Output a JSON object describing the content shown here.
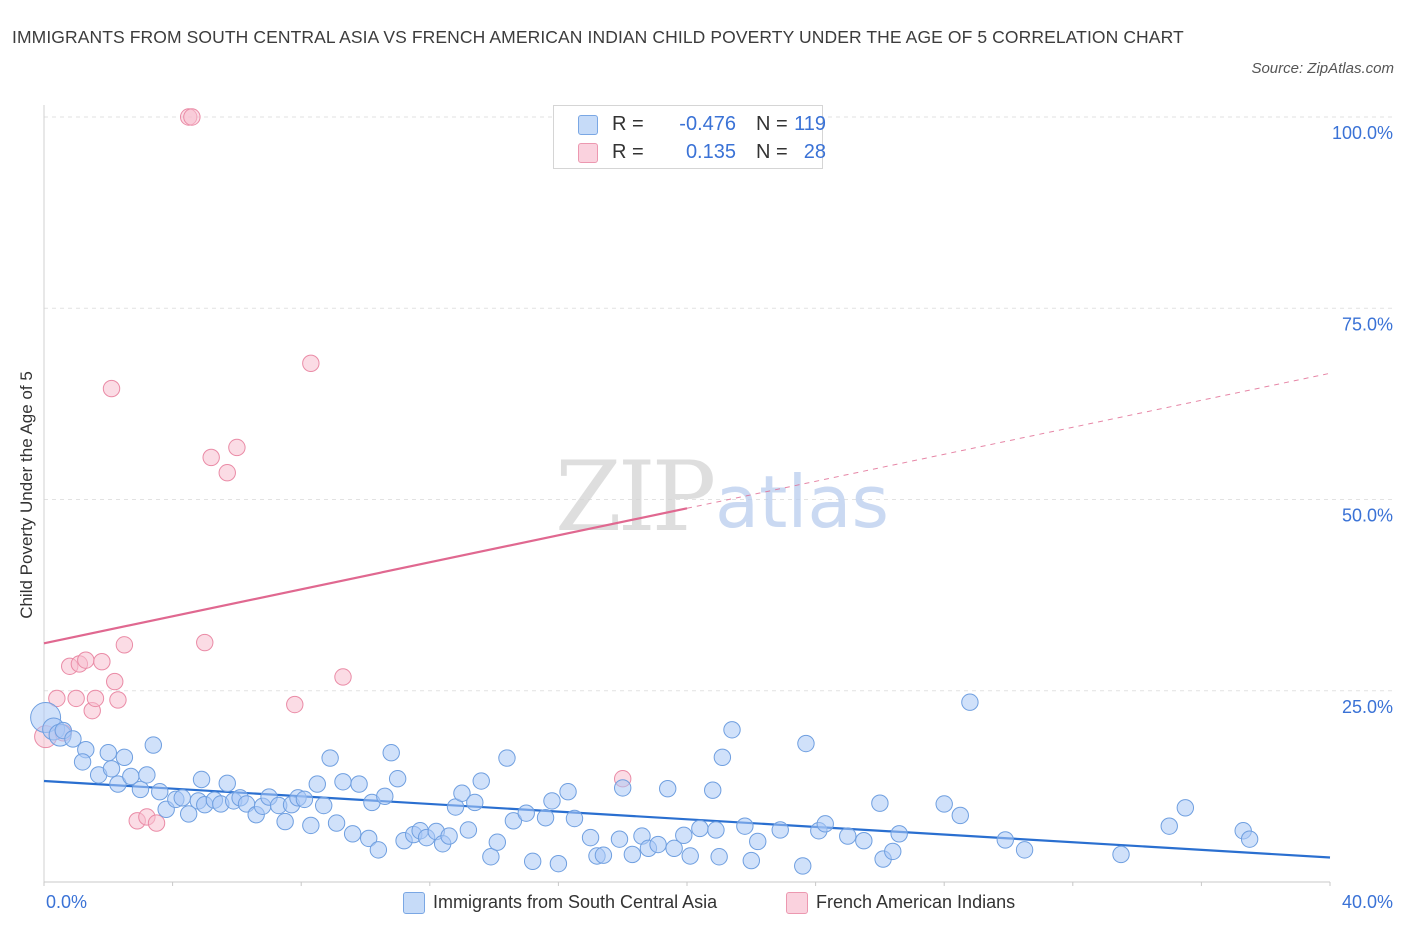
{
  "title": "IMMIGRANTS FROM SOUTH CENTRAL ASIA VS FRENCH AMERICAN INDIAN CHILD POVERTY UNDER THE AGE OF 5 CORRELATION CHART",
  "source": "Source: ZipAtlas.com",
  "watermark": {
    "zip": "ZIP",
    "atlas": "atlas"
  },
  "colors": {
    "blue_fill": "#a9c8f5",
    "blue_stroke": "#6f9fe0",
    "blue_line": "#2a6fd0",
    "pink_fill": "#f7c0d0",
    "pink_stroke": "#ea8ba6",
    "pink_line": "#e06890",
    "axis_text": "#3a72d6",
    "grid": "#e2e2e2"
  },
  "legend_top": {
    "rows": [
      {
        "r_label": "R =",
        "r_value": "-0.476",
        "n_label": "N =",
        "n_value": "119"
      },
      {
        "r_label": "R =",
        "r_value": "0.135",
        "n_label": "N =",
        "n_value": "28"
      }
    ]
  },
  "legend_bottom": [
    "Immigrants from South Central Asia",
    "French American Indians"
  ],
  "chart_data": {
    "type": "scatter",
    "title": "IMMIGRANTS FROM SOUTH CENTRAL ASIA VS FRENCH AMERICAN INDIAN CHILD POVERTY UNDER THE AGE OF 5 CORRELATION CHART",
    "xlabel": "",
    "ylabel": "Child Poverty Under the Age of 5",
    "xlim": [
      0,
      40
    ],
    "ylim": [
      0,
      100
    ],
    "x_tick_labels": [
      "0.0%",
      "40.0%"
    ],
    "y_ticks": [
      25,
      50,
      75,
      100
    ],
    "y_tick_labels": [
      "25.0%",
      "50.0%",
      "75.0%",
      "100.0%"
    ],
    "grid": "horizontal dashed",
    "legend_position": "top-center",
    "series": [
      {
        "name": "Immigrants from South Central Asia",
        "color": "#a9c8f5",
        "trend": {
          "x": [
            0,
            40
          ],
          "y": [
            13.2,
            3.2
          ],
          "dashed_after": null
        },
        "points": [
          [
            0.05,
            21.5,
            3
          ],
          [
            0.3,
            20.0,
            2
          ],
          [
            0.5,
            19.2,
            2
          ],
          [
            0.6,
            19.8,
            1
          ],
          [
            0.9,
            18.7,
            1
          ],
          [
            1.3,
            17.3,
            1
          ],
          [
            1.2,
            15.7,
            1
          ],
          [
            1.7,
            14.0,
            1
          ],
          [
            2.0,
            16.9,
            1
          ],
          [
            2.1,
            14.8,
            1
          ],
          [
            2.3,
            12.8,
            1
          ],
          [
            2.5,
            16.3,
            1
          ],
          [
            2.7,
            13.8,
            1
          ],
          [
            3.0,
            12.1,
            1
          ],
          [
            3.2,
            14.0,
            1
          ],
          [
            3.4,
            17.9,
            1
          ],
          [
            3.6,
            11.8,
            1
          ],
          [
            3.8,
            9.5,
            1
          ],
          [
            4.1,
            10.8,
            1
          ],
          [
            4.3,
            11.0,
            1
          ],
          [
            4.5,
            8.9,
            1
          ],
          [
            4.8,
            10.6,
            1
          ],
          [
            4.9,
            13.4,
            1
          ],
          [
            5.0,
            10.1,
            1
          ],
          [
            5.3,
            10.7,
            1
          ],
          [
            5.5,
            10.2,
            1
          ],
          [
            5.7,
            12.9,
            1
          ],
          [
            5.9,
            10.6,
            1
          ],
          [
            6.1,
            11.0,
            1
          ],
          [
            6.3,
            10.2,
            1
          ],
          [
            6.6,
            8.8,
            1
          ],
          [
            6.8,
            9.9,
            1
          ],
          [
            7.0,
            11.1,
            1
          ],
          [
            7.3,
            10.0,
            1
          ],
          [
            7.5,
            7.9,
            1
          ],
          [
            7.7,
            10.1,
            1
          ],
          [
            7.9,
            11.0,
            1
          ],
          [
            8.1,
            10.8,
            1
          ],
          [
            8.3,
            7.4,
            1
          ],
          [
            8.5,
            12.8,
            1
          ],
          [
            8.7,
            10.0,
            1
          ],
          [
            8.9,
            16.2,
            1
          ],
          [
            9.1,
            7.7,
            1
          ],
          [
            9.3,
            13.1,
            1
          ],
          [
            9.6,
            6.3,
            1
          ],
          [
            9.8,
            12.8,
            1
          ],
          [
            10.1,
            5.7,
            1
          ],
          [
            10.2,
            10.4,
            1
          ],
          [
            10.4,
            4.2,
            1
          ],
          [
            10.6,
            11.2,
            1
          ],
          [
            10.8,
            16.9,
            1
          ],
          [
            11.0,
            13.5,
            1
          ],
          [
            11.2,
            5.4,
            1
          ],
          [
            11.5,
            6.2,
            1
          ],
          [
            11.7,
            6.7,
            1
          ],
          [
            11.9,
            5.8,
            1
          ],
          [
            12.2,
            6.6,
            1
          ],
          [
            12.4,
            5.0,
            1
          ],
          [
            12.6,
            6.0,
            1
          ],
          [
            12.8,
            9.8,
            1
          ],
          [
            13.0,
            11.6,
            1
          ],
          [
            13.2,
            6.8,
            1
          ],
          [
            13.4,
            10.4,
            1
          ],
          [
            13.6,
            13.2,
            1
          ],
          [
            13.9,
            3.3,
            1
          ],
          [
            14.1,
            5.2,
            1
          ],
          [
            14.4,
            16.2,
            1
          ],
          [
            14.6,
            8.0,
            1
          ],
          [
            15.0,
            9.0,
            1
          ],
          [
            15.2,
            2.7,
            1
          ],
          [
            15.6,
            8.4,
            1
          ],
          [
            16.0,
            2.4,
            1
          ],
          [
            15.8,
            10.6,
            1
          ],
          [
            16.3,
            11.8,
            1
          ],
          [
            16.5,
            8.3,
            1
          ],
          [
            17.0,
            5.8,
            1
          ],
          [
            17.2,
            3.4,
            1
          ],
          [
            17.4,
            3.5,
            1
          ],
          [
            17.9,
            5.6,
            1
          ],
          [
            18.0,
            12.3,
            1
          ],
          [
            18.3,
            3.6,
            1
          ],
          [
            18.6,
            6.0,
            1
          ],
          [
            18.8,
            4.4,
            1
          ],
          [
            19.1,
            4.9,
            1
          ],
          [
            19.4,
            12.2,
            1
          ],
          [
            19.6,
            4.4,
            1
          ],
          [
            19.9,
            6.1,
            1
          ],
          [
            20.1,
            3.4,
            1
          ],
          [
            20.4,
            7.0,
            1
          ],
          [
            20.8,
            12.0,
            1
          ],
          [
            20.9,
            6.8,
            1
          ],
          [
            21.0,
            3.3,
            1
          ],
          [
            21.1,
            16.3,
            1
          ],
          [
            21.4,
            19.9,
            1
          ],
          [
            21.8,
            7.3,
            1
          ],
          [
            22.0,
            2.8,
            1
          ],
          [
            22.2,
            5.3,
            1
          ],
          [
            22.9,
            6.8,
            1
          ],
          [
            23.7,
            18.1,
            1
          ],
          [
            23.6,
            2.1,
            1
          ],
          [
            24.1,
            6.7,
            1
          ],
          [
            24.3,
            7.6,
            1
          ],
          [
            25.0,
            6.0,
            1
          ],
          [
            25.5,
            5.4,
            1
          ],
          [
            26.0,
            10.3,
            1
          ],
          [
            26.1,
            3.0,
            1
          ],
          [
            26.4,
            4.0,
            1
          ],
          [
            26.6,
            6.3,
            1
          ],
          [
            28.0,
            10.2,
            1
          ],
          [
            28.5,
            8.7,
            1
          ],
          [
            28.8,
            23.5,
            1
          ],
          [
            29.9,
            5.5,
            1
          ],
          [
            30.5,
            4.2,
            1
          ],
          [
            33.5,
            3.6,
            1
          ],
          [
            35.0,
            7.3,
            1
          ],
          [
            35.5,
            9.7,
            1
          ],
          [
            37.3,
            6.7,
            1
          ],
          [
            37.5,
            5.6,
            1
          ]
        ]
      },
      {
        "name": "French American Indians",
        "color": "#f7c0d0",
        "trend": {
          "x": [
            0,
            40
          ],
          "y": [
            31.2,
            66.5
          ],
          "dashed_after": 20
        },
        "points": [
          [
            0.05,
            19.0,
            2
          ],
          [
            0.4,
            24.0,
            1
          ],
          [
            0.6,
            19.5,
            1
          ],
          [
            0.8,
            28.2,
            1
          ],
          [
            1.0,
            24.0,
            1
          ],
          [
            1.1,
            28.5,
            1
          ],
          [
            1.3,
            29.0,
            1
          ],
          [
            1.5,
            22.4,
            1
          ],
          [
            1.6,
            24.0,
            1
          ],
          [
            1.8,
            28.8,
            1
          ],
          [
            2.1,
            64.5,
            1
          ],
          [
            2.2,
            26.2,
            1
          ],
          [
            2.3,
            23.8,
            1
          ],
          [
            2.5,
            31.0,
            1
          ],
          [
            2.9,
            8.0,
            1
          ],
          [
            3.2,
            8.5,
            1
          ],
          [
            3.5,
            7.7,
            1
          ],
          [
            4.5,
            100.0,
            1
          ],
          [
            4.6,
            100.0,
            1
          ],
          [
            5.0,
            31.3,
            1
          ],
          [
            5.2,
            55.5,
            1
          ],
          [
            5.7,
            53.5,
            1
          ],
          [
            6.0,
            56.8,
            1
          ],
          [
            7.8,
            23.2,
            1
          ],
          [
            8.3,
            67.8,
            1
          ],
          [
            9.3,
            26.8,
            1
          ],
          [
            18.0,
            13.5,
            1
          ]
        ]
      }
    ]
  }
}
